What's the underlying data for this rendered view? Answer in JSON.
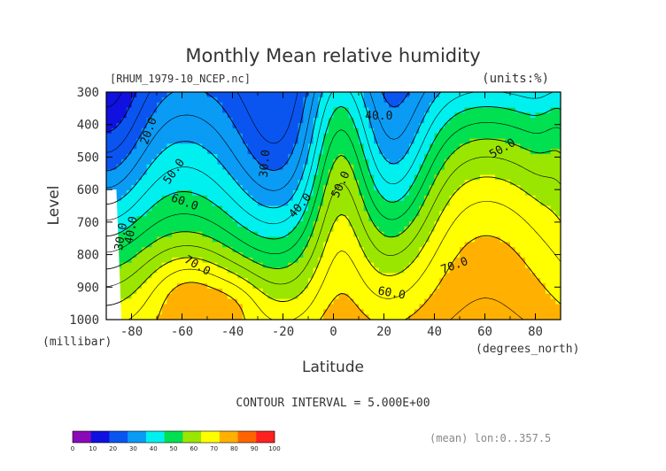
{
  "chart_data": {
    "type": "contour",
    "title": "Monthly Mean relative humidity",
    "source_label": "[RHUM_1979-10_NCEP.nc]",
    "units_label": "(units:%)",
    "xlabel": "Latitude",
    "x_unit_label": "(degrees_north)",
    "ylabel": "Level",
    "y_unit_label": "(millibar)",
    "x_ticks": [
      "-80",
      "-60",
      "-40",
      "-20",
      "0",
      "20",
      "40",
      "60",
      "80"
    ],
    "x_tick_values": [
      -80,
      -60,
      -40,
      -20,
      0,
      20,
      40,
      60,
      80
    ],
    "y_ticks": [
      "300",
      "400",
      "500",
      "600",
      "700",
      "800",
      "900",
      "1000"
    ],
    "y_tick_values": [
      300,
      400,
      500,
      600,
      700,
      800,
      900,
      1000
    ],
    "xlim": [
      -90,
      90
    ],
    "ylim": [
      1000,
      300
    ],
    "contour_interval_text": "CONTOUR INTERVAL = 5.000E+00",
    "mean_note": "(mean) lon:0..357.5",
    "contour_labels": [
      {
        "text": "20.0",
        "lat": -73,
        "level": 420,
        "angle": -70
      },
      {
        "text": "50.0",
        "lat": -63,
        "level": 545,
        "angle": -55
      },
      {
        "text": "60.0",
        "lat": -59,
        "level": 640,
        "angle": 20
      },
      {
        "text": "30.0",
        "lat": -84,
        "level": 745,
        "angle": -80
      },
      {
        "text": "40.0",
        "lat": -80,
        "level": 725,
        "angle": -80
      },
      {
        "text": "70.0",
        "lat": -54,
        "level": 835,
        "angle": 30
      },
      {
        "text": "30.0",
        "lat": -27,
        "level": 520,
        "angle": -85
      },
      {
        "text": "40.0",
        "lat": -13,
        "level": 650,
        "angle": -50
      },
      {
        "text": "50.0",
        "lat": 3,
        "level": 585,
        "angle": -65
      },
      {
        "text": "40.0",
        "lat": 18,
        "level": 375,
        "angle": 0
      },
      {
        "text": "50.0",
        "lat": 67,
        "level": 475,
        "angle": -30
      },
      {
        "text": "60.0",
        "lat": 23,
        "level": 920,
        "angle": 10
      },
      {
        "text": "70.0",
        "lat": 48,
        "level": 835,
        "angle": -20
      }
    ],
    "colorbar": {
      "ticks": [
        "0",
        "10",
        "20",
        "30",
        "40",
        "50",
        "60",
        "70",
        "80",
        "90",
        "100"
      ],
      "colors": [
        "#8a0ab8",
        "#1010e0",
        "#0a55f0",
        "#0a9bf5",
        "#00f0f0",
        "#00e050",
        "#9be600",
        "#ffff00",
        "#ffb000",
        "#ff6400",
        "#ff2020"
      ]
    },
    "band_colors": {
      "5": "#8a0ab8",
      "15": "#1010e0",
      "25": "#0a55f0",
      "35": "#0a9bf5",
      "45": "#00f0f0",
      "55": "#00e050",
      "65": "#9be600",
      "75": "#ffff00",
      "85": "#ffb000",
      "95": "#ff6400",
      "99": "#ff2020"
    }
  }
}
